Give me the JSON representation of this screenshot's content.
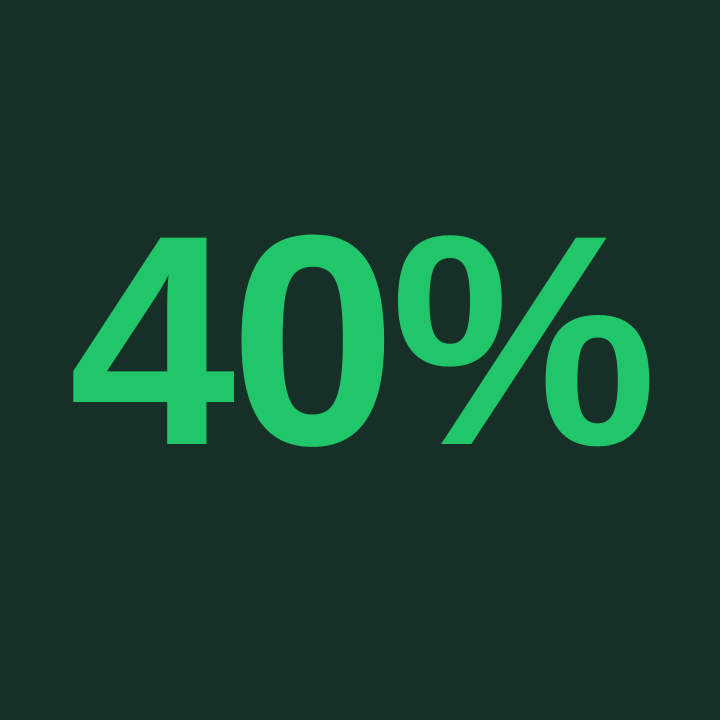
{
  "stat": {
    "value": "40%",
    "color": "#22c66a"
  },
  "background": "#163028"
}
